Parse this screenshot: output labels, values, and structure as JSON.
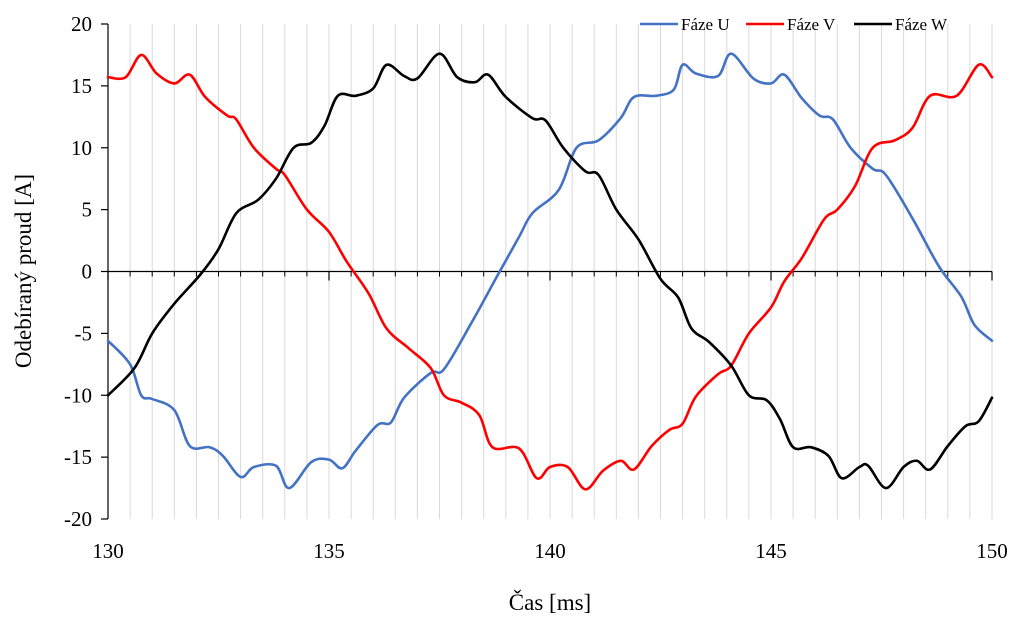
{
  "chart_data": {
    "type": "line",
    "xlabel": "Čas [ms]",
    "ylabel": "Odebíraný proud [A]",
    "xlim": [
      130,
      150
    ],
    "ylim": [
      -20,
      20
    ],
    "x_ticks": [
      130,
      135,
      140,
      145,
      150
    ],
    "y_ticks": [
      -20,
      -15,
      -10,
      -5,
      0,
      5,
      10,
      15,
      20
    ],
    "grid": "vertical",
    "legend": "top-right",
    "series": [
      {
        "name": "Fáze U",
        "color": "#4472C4",
        "points": [
          [
            130,
            -5.6
          ],
          [
            130.5,
            -7.5
          ],
          [
            130.75,
            -10.0
          ],
          [
            131.0,
            -10.3
          ],
          [
            131.5,
            -11.2
          ],
          [
            131.85,
            -14.1
          ],
          [
            132.3,
            -14.2
          ],
          [
            132.6,
            -14.9
          ],
          [
            133.0,
            -16.6
          ],
          [
            133.3,
            -15.8
          ],
          [
            133.8,
            -15.7
          ],
          [
            134.1,
            -17.5
          ],
          [
            134.6,
            -15.4
          ],
          [
            135.0,
            -15.2
          ],
          [
            135.3,
            -15.9
          ],
          [
            135.6,
            -14.5
          ],
          [
            136.1,
            -12.4
          ],
          [
            136.4,
            -12.2
          ],
          [
            136.7,
            -10.2
          ],
          [
            137.3,
            -8.2
          ],
          [
            137.6,
            -7.9
          ],
          [
            138.2,
            -4.3
          ],
          [
            138.8,
            -0.4
          ],
          [
            139.3,
            2.8
          ],
          [
            139.6,
            4.7
          ],
          [
            140.2,
            6.6
          ],
          [
            140.6,
            10.0
          ],
          [
            141.1,
            10.6
          ],
          [
            141.6,
            12.4
          ],
          [
            141.9,
            14.1
          ],
          [
            142.4,
            14.2
          ],
          [
            142.8,
            14.7
          ],
          [
            143.0,
            16.7
          ],
          [
            143.3,
            16.0
          ],
          [
            143.8,
            15.8
          ],
          [
            144.1,
            17.6
          ],
          [
            144.6,
            15.6
          ],
          [
            145.0,
            15.2
          ],
          [
            145.3,
            15.9
          ],
          [
            145.7,
            14.0
          ],
          [
            146.1,
            12.6
          ],
          [
            146.4,
            12.3
          ],
          [
            146.8,
            10.0
          ],
          [
            147.3,
            8.3
          ],
          [
            147.6,
            7.8
          ],
          [
            148.2,
            4.3
          ],
          [
            148.8,
            0.4
          ],
          [
            149.3,
            -2.0
          ],
          [
            149.6,
            -4.3
          ],
          [
            150,
            -5.6
          ]
        ]
      },
      {
        "name": "Fáze V",
        "color": "#FF0000",
        "points": [
          [
            130,
            15.7
          ],
          [
            130.4,
            15.7
          ],
          [
            130.75,
            17.5
          ],
          [
            131.1,
            16.0
          ],
          [
            131.5,
            15.2
          ],
          [
            131.85,
            15.9
          ],
          [
            132.2,
            14.1
          ],
          [
            132.7,
            12.6
          ],
          [
            132.9,
            12.3
          ],
          [
            133.3,
            10.0
          ],
          [
            133.8,
            8.3
          ],
          [
            134.0,
            7.8
          ],
          [
            134.5,
            5.0
          ],
          [
            135.0,
            3.2
          ],
          [
            135.4,
            0.8
          ],
          [
            135.9,
            -1.8
          ],
          [
            136.3,
            -4.6
          ],
          [
            136.8,
            -6.2
          ],
          [
            137.3,
            -7.8
          ],
          [
            137.6,
            -10.0
          ],
          [
            138.0,
            -10.6
          ],
          [
            138.4,
            -11.6
          ],
          [
            138.7,
            -14.2
          ],
          [
            139.3,
            -14.3
          ],
          [
            139.7,
            -16.7
          ],
          [
            140.0,
            -15.8
          ],
          [
            140.4,
            -15.8
          ],
          [
            140.8,
            -17.6
          ],
          [
            141.2,
            -16.1
          ],
          [
            141.6,
            -15.3
          ],
          [
            141.9,
            -16.0
          ],
          [
            142.3,
            -14.1
          ],
          [
            142.7,
            -12.8
          ],
          [
            143.0,
            -12.3
          ],
          [
            143.3,
            -10.1
          ],
          [
            143.8,
            -8.3
          ],
          [
            144.1,
            -7.6
          ],
          [
            144.5,
            -5.0
          ],
          [
            145.0,
            -2.9
          ],
          [
            145.3,
            -0.8
          ],
          [
            145.7,
            1.1
          ],
          [
            146.2,
            4.2
          ],
          [
            146.5,
            5.0
          ],
          [
            146.9,
            6.9
          ],
          [
            147.3,
            10.0
          ],
          [
            147.8,
            10.6
          ],
          [
            148.2,
            11.6
          ],
          [
            148.6,
            14.2
          ],
          [
            149.2,
            14.2
          ],
          [
            149.7,
            16.7
          ],
          [
            150,
            15.7
          ]
        ]
      },
      {
        "name": "Fáze W",
        "color": "#000000",
        "points": [
          [
            130,
            -10.0
          ],
          [
            130.6,
            -7.8
          ],
          [
            131.0,
            -5.0
          ],
          [
            131.5,
            -2.6
          ],
          [
            132.1,
            -0.2
          ],
          [
            132.5,
            1.8
          ],
          [
            132.9,
            4.7
          ],
          [
            133.4,
            5.8
          ],
          [
            133.8,
            7.5
          ],
          [
            134.2,
            10.0
          ],
          [
            134.6,
            10.4
          ],
          [
            134.9,
            11.8
          ],
          [
            135.2,
            14.2
          ],
          [
            135.6,
            14.2
          ],
          [
            136.0,
            14.8
          ],
          [
            136.3,
            16.7
          ],
          [
            136.7,
            15.8
          ],
          [
            137.0,
            15.6
          ],
          [
            137.5,
            17.6
          ],
          [
            137.9,
            15.7
          ],
          [
            138.3,
            15.3
          ],
          [
            138.6,
            15.9
          ],
          [
            139.0,
            14.1
          ],
          [
            139.6,
            12.4
          ],
          [
            139.9,
            12.2
          ],
          [
            140.3,
            10.0
          ],
          [
            140.8,
            8.1
          ],
          [
            141.1,
            7.8
          ],
          [
            141.5,
            5.0
          ],
          [
            142.0,
            2.6
          ],
          [
            142.5,
            -0.6
          ],
          [
            142.9,
            -2.1
          ],
          [
            143.2,
            -4.6
          ],
          [
            143.6,
            -5.7
          ],
          [
            144.1,
            -7.6
          ],
          [
            144.5,
            -10.0
          ],
          [
            144.9,
            -10.4
          ],
          [
            145.2,
            -11.9
          ],
          [
            145.5,
            -14.2
          ],
          [
            145.9,
            -14.2
          ],
          [
            146.3,
            -14.9
          ],
          [
            146.6,
            -16.7
          ],
          [
            147.0,
            -15.8
          ],
          [
            147.2,
            -15.7
          ],
          [
            147.6,
            -17.5
          ],
          [
            148.0,
            -15.8
          ],
          [
            148.3,
            -15.3
          ],
          [
            148.6,
            -16.0
          ],
          [
            149.0,
            -14.1
          ],
          [
            149.4,
            -12.5
          ],
          [
            149.7,
            -12.1
          ],
          [
            150,
            -10.2
          ]
        ]
      }
    ]
  }
}
